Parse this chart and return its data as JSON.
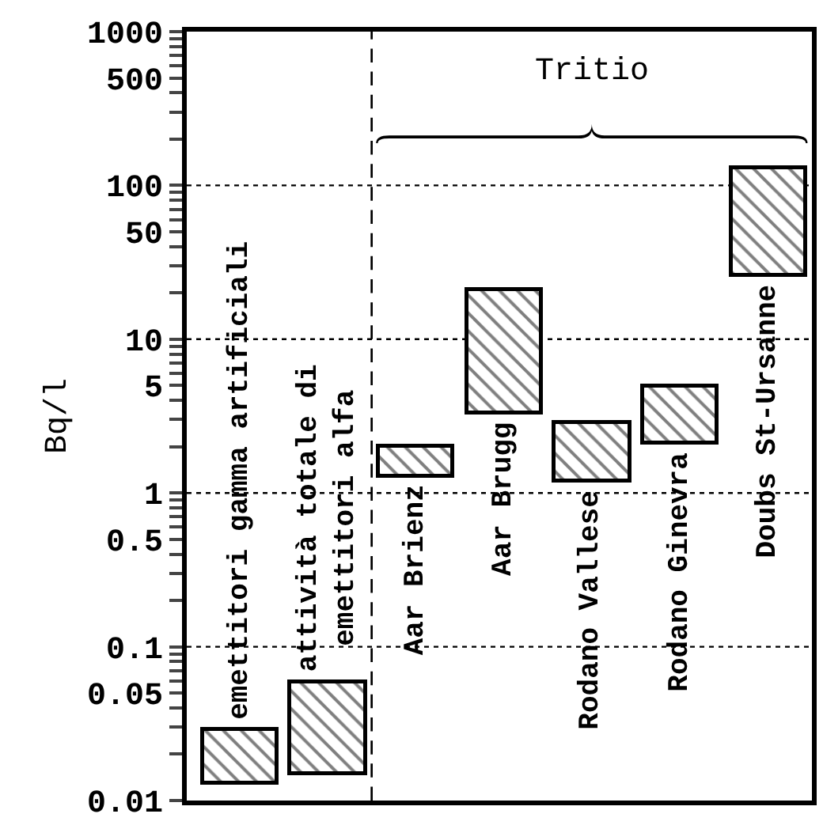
{
  "chart_data": {
    "type": "bar",
    "ylabel": "Bq/l",
    "categories": [
      "emettitori gamma artificiali",
      "attività totale di\nemettitori alfa",
      "Aar Brienz",
      "Aar Brugg",
      "Rodano Vallese",
      "Rodano Ginevra",
      "Doubs St-Ursanne"
    ],
    "base": [
      0.013,
      0.015,
      1.3,
      3.3,
      1.2,
      2.1,
      26
    ],
    "values": [
      0.016,
      0.044,
      0.7,
      17.7,
      1.7,
      2.9,
      104
    ],
    "color": "#000000",
    "log": true,
    "ylim": [
      0.01,
      1000
    ],
    "yticks": [
      0.01,
      {
        "value": 0.02,
        "label": null
      },
      {
        "value": 0.03,
        "label": null
      },
      {
        "value": 0.04,
        "label": null
      },
      0.05,
      {
        "value": 0.06,
        "label": null
      },
      {
        "value": 0.07,
        "label": null
      },
      {
        "value": 0.08,
        "label": null
      },
      {
        "value": 0.09,
        "label": null
      },
      0.1,
      {
        "value": 0.2,
        "label": null
      },
      {
        "value": 0.3,
        "label": null
      },
      {
        "value": 0.4,
        "label": null
      },
      0.5,
      {
        "value": 0.6,
        "label": null
      },
      {
        "value": 0.7,
        "label": null
      },
      {
        "value": 0.8,
        "label": null
      },
      {
        "value": 0.9,
        "label": null
      },
      1,
      {
        "value": 2,
        "label": null
      },
      {
        "value": 3,
        "label": null
      },
      {
        "value": 4,
        "label": null
      },
      5,
      {
        "value": 6,
        "label": null
      },
      {
        "value": 7,
        "label": null
      },
      {
        "value": 8,
        "label": null
      },
      {
        "value": 9,
        "label": null
      },
      10,
      {
        "value": 20,
        "label": null
      },
      {
        "value": 30,
        "label": null
      },
      {
        "value": 40,
        "label": null
      },
      50,
      {
        "value": 60,
        "label": null
      },
      {
        "value": 70,
        "label": null
      },
      {
        "value": 80,
        "label": null
      },
      {
        "value": 90,
        "label": null
      },
      100,
      {
        "value": 200,
        "label": null
      },
      {
        "value": 300,
        "label": null
      },
      {
        "value": 400,
        "label": null
      },
      500,
      {
        "value": 600,
        "label": null
      },
      {
        "value": 700,
        "label": null
      },
      {
        "value": 800,
        "label": null
      },
      {
        "value": 900,
        "label": null
      },
      1000
    ],
    "grid": "y",
    "annotations": [
      "Tritio"
    ],
    "legend": false
  }
}
